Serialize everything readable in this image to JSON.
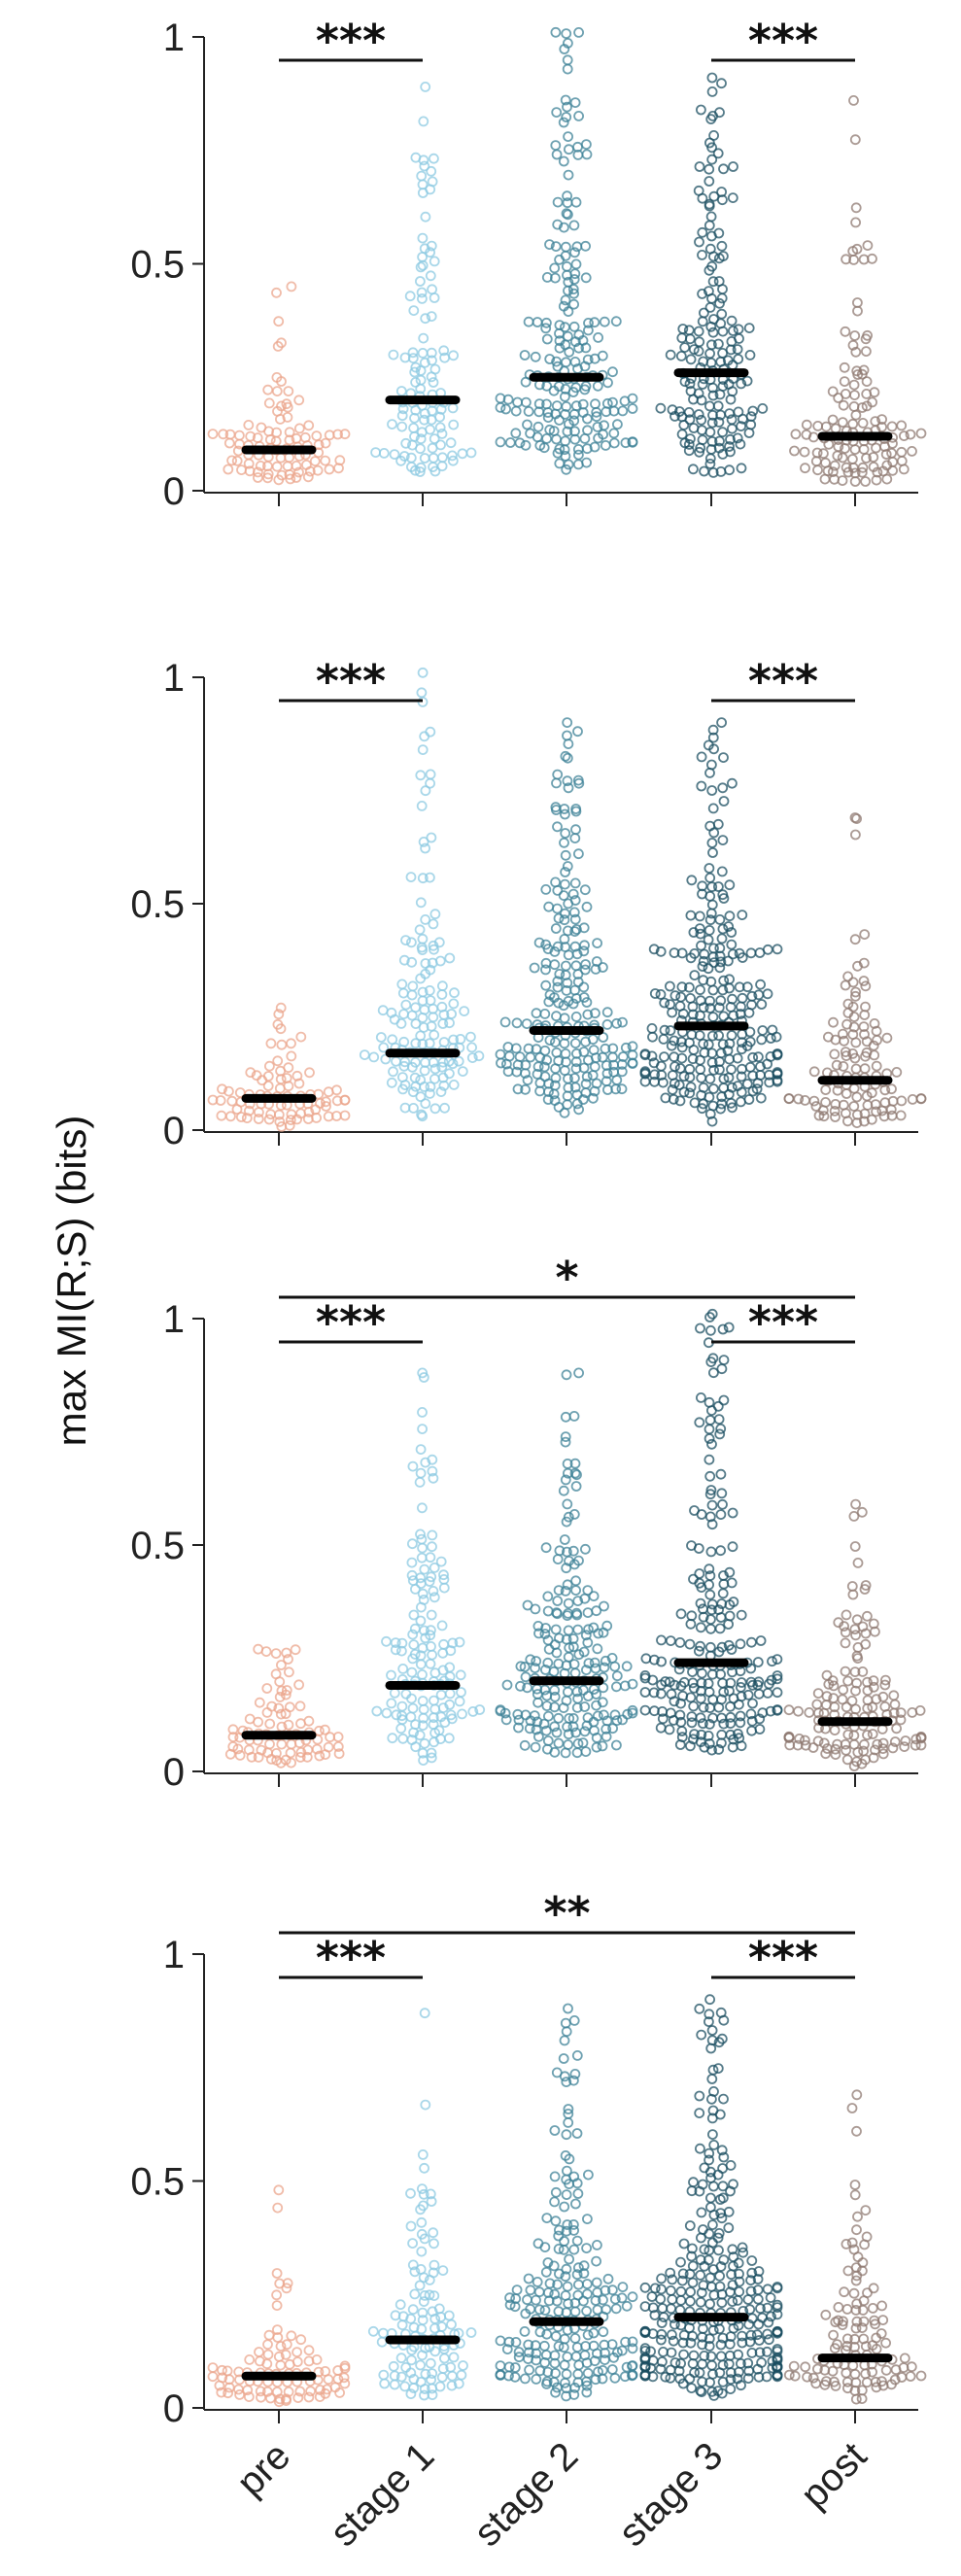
{
  "chart_data": {
    "type": "scatter",
    "subtype": "beeswarm",
    "ylabel": "max MI(R;S) (bits)",
    "ylim": [
      0,
      1
    ],
    "yticks": [
      "0",
      "0.5",
      "1"
    ],
    "categories": [
      "pre",
      "stage 1",
      "stage 2",
      "stage 3",
      "post"
    ],
    "category_colors": [
      "#EBA58C",
      "#8CC9E2",
      "#3E8297",
      "#1C4F62",
      "#8F7A72"
    ],
    "panels": [
      {
        "medians": [
          0.09,
          0.2,
          0.25,
          0.26,
          0.12
        ],
        "max_values": [
          0.45,
          0.89,
          1.01,
          0.91,
          0.86
        ],
        "point_counts": [
          90,
          110,
          200,
          170,
          120
        ],
        "significance": [
          {
            "from": "pre",
            "to": "stage 1",
            "label": "***"
          },
          {
            "from": "stage 3",
            "to": "post",
            "label": "***"
          }
        ]
      },
      {
        "medians": [
          0.07,
          0.17,
          0.22,
          0.23,
          0.11
        ],
        "max_values": [
          0.27,
          1.01,
          0.9,
          0.9,
          0.69
        ],
        "point_counts": [
          80,
          140,
          220,
          260,
          110
        ],
        "significance": [
          {
            "from": "pre",
            "to": "stage 1",
            "label": "***"
          },
          {
            "from": "stage 3",
            "to": "post",
            "label": "***"
          }
        ]
      },
      {
        "medians": [
          0.08,
          0.19,
          0.2,
          0.24,
          0.11
        ],
        "max_values": [
          0.27,
          0.88,
          0.88,
          1.01,
          0.59
        ],
        "point_counts": [
          80,
          140,
          200,
          220,
          140
        ],
        "significance": [
          {
            "from": "pre",
            "to": "post",
            "label": "*"
          },
          {
            "from": "pre",
            "to": "stage 1",
            "label": "***"
          },
          {
            "from": "stage 3",
            "to": "post",
            "label": "***"
          }
        ]
      },
      {
        "medians": [
          0.07,
          0.15,
          0.19,
          0.2,
          0.11
        ],
        "max_values": [
          0.48,
          0.87,
          0.88,
          0.9,
          0.69
        ],
        "point_counts": [
          90,
          110,
          220,
          300,
          110
        ],
        "significance": [
          {
            "from": "pre",
            "to": "post",
            "label": "**"
          },
          {
            "from": "pre",
            "to": "stage 1",
            "label": "***"
          },
          {
            "from": "stage 3",
            "to": "post",
            "label": "***"
          }
        ]
      }
    ]
  }
}
